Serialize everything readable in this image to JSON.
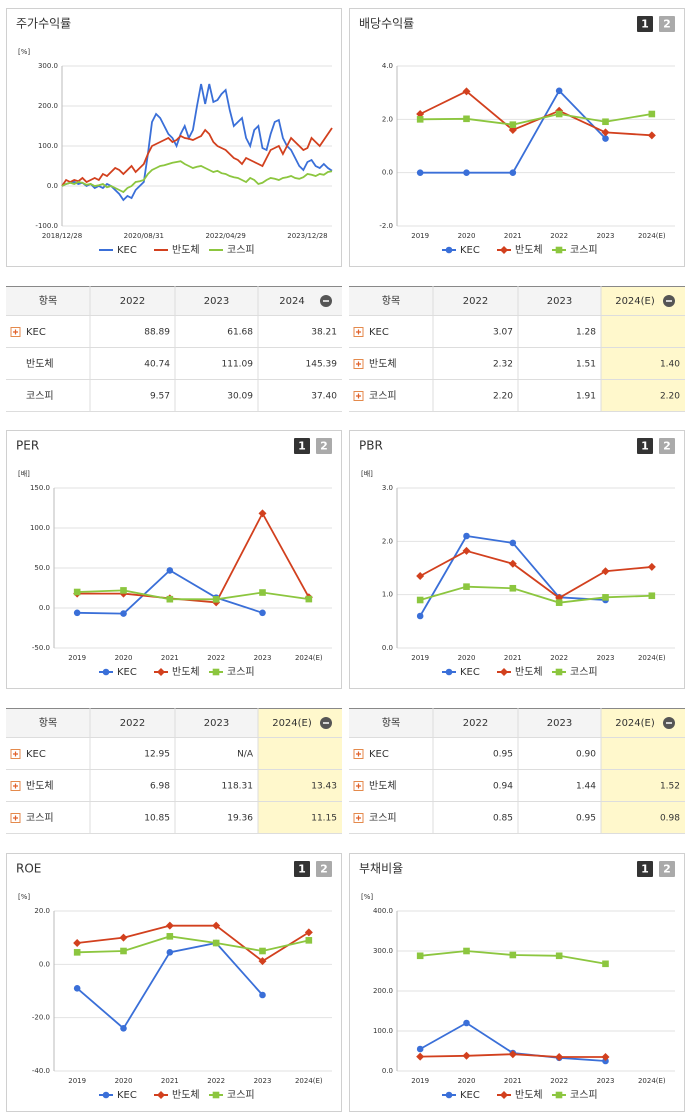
{
  "chart_data": [
    {
      "type": "line",
      "title": "주가수익률",
      "unit": "[%]",
      "categories": [
        "2018/12/28",
        null,
        null,
        null,
        null,
        null,
        null,
        null,
        null,
        null,
        null,
        null,
        null,
        null,
        null,
        null,
        null,
        null,
        null,
        null,
        "2020/08/31",
        null,
        null,
        null,
        null,
        null,
        null,
        null,
        null,
        null,
        null,
        null,
        null,
        null,
        null,
        null,
        null,
        null,
        null,
        null,
        "2022/04/29",
        null,
        null,
        null,
        null,
        null,
        null,
        null,
        null,
        null,
        null,
        null,
        null,
        null,
        null,
        null,
        null,
        null,
        null,
        null,
        "2023/12/28",
        null,
        null,
        null,
        null,
        null,
        null
      ],
      "series": [
        {
          "name": "KEC",
          "color": "#3a6fd8",
          "values": [
            0,
            5,
            8,
            10,
            5,
            8,
            0,
            5,
            -5,
            0,
            -5,
            5,
            0,
            -10,
            -20,
            -35,
            -25,
            -30,
            -10,
            0,
            10,
            80,
            160,
            180,
            170,
            150,
            130,
            120,
            100,
            130,
            150,
            120,
            140,
            200,
            255,
            205,
            255,
            210,
            215,
            230,
            240,
            190,
            150,
            160,
            170,
            120,
            100,
            140,
            150,
            95,
            90,
            130,
            160,
            165,
            120,
            100,
            90,
            70,
            50,
            40,
            60,
            65,
            50,
            45,
            55,
            45,
            38
          ]
        },
        {
          "name": "반도체",
          "color": "#d2401e",
          "values": [
            0,
            15,
            10,
            15,
            12,
            20,
            10,
            15,
            20,
            15,
            30,
            25,
            35,
            45,
            40,
            30,
            40,
            50,
            35,
            45,
            55,
            80,
            100,
            105,
            110,
            115,
            120,
            110,
            115,
            125,
            120,
            118,
            115,
            120,
            125,
            140,
            130,
            110,
            100,
            95,
            90,
            80,
            70,
            65,
            55,
            70,
            65,
            60,
            55,
            50,
            70,
            90,
            95,
            100,
            80,
            100,
            120,
            110,
            100,
            90,
            95,
            120,
            110,
            100,
            115,
            130,
            145
          ]
        },
        {
          "name": "코스피",
          "color": "#8cc63f",
          "values": [
            0,
            5,
            8,
            5,
            10,
            8,
            3,
            5,
            0,
            2,
            5,
            -3,
            0,
            -5,
            -10,
            -15,
            -5,
            0,
            10,
            12,
            15,
            30,
            40,
            45,
            50,
            52,
            55,
            58,
            60,
            62,
            55,
            50,
            45,
            48,
            50,
            45,
            40,
            35,
            38,
            32,
            30,
            25,
            22,
            20,
            15,
            10,
            20,
            15,
            5,
            8,
            15,
            20,
            18,
            15,
            20,
            22,
            25,
            20,
            18,
            22,
            30,
            28,
            25,
            30,
            28,
            35,
            37
          ]
        }
      ],
      "ylim": [
        -100,
        300
      ],
      "yticks": [
        {
          "value": -100,
          "label": "-100.0"
        },
        {
          "value": 0,
          "label": "0.0"
        },
        {
          "value": 100,
          "label": "100.0"
        },
        {
          "value": 200,
          "label": "200.0"
        },
        {
          "value": 300,
          "label": "300.0"
        }
      ],
      "grid": true
    },
    {
      "type": "line",
      "title": "배당수익률",
      "buttons": [
        "1",
        "2"
      ],
      "categories": [
        "2019",
        "2020",
        "2021",
        "2022",
        "2023",
        "2024(E)"
      ],
      "series": [
        {
          "name": "KEC",
          "color": "#3a6fd8",
          "marker": "circle",
          "values": [
            0,
            0,
            0,
            3.07,
            1.28,
            null
          ]
        },
        {
          "name": "반도체",
          "color": "#d2401e",
          "marker": "diamond",
          "values": [
            2.2,
            3.05,
            1.6,
            2.32,
            1.51,
            1.4
          ]
        },
        {
          "name": "코스피",
          "color": "#8cc63f",
          "marker": "square",
          "values": [
            2.0,
            2.02,
            1.8,
            2.2,
            1.91,
            2.2
          ]
        }
      ],
      "ylim": [
        -2,
        4
      ],
      "yticks": [
        {
          "value": -2,
          "label": "-2.0"
        },
        {
          "value": 0,
          "label": "0.0"
        },
        {
          "value": 2,
          "label": "2.0"
        },
        {
          "value": 4,
          "label": "4.0"
        }
      ],
      "grid": true
    },
    {
      "type": "line",
      "title": "PER",
      "unit": "[배]",
      "buttons": [
        "1",
        "2"
      ],
      "categories": [
        "2019",
        "2020",
        "2021",
        "2022",
        "2023",
        "2024(E)"
      ],
      "series": [
        {
          "name": "KEC",
          "color": "#3a6fd8",
          "marker": "circle",
          "values": [
            -6,
            -7,
            47,
            12.95,
            -6,
            null
          ]
        },
        {
          "name": "반도체",
          "color": "#d2401e",
          "marker": "diamond",
          "values": [
            18,
            18,
            12,
            6.98,
            118.31,
            13.43
          ]
        },
        {
          "name": "코스피",
          "color": "#8cc63f",
          "marker": "square",
          "values": [
            20,
            22,
            11,
            10.85,
            19.36,
            11.15
          ]
        }
      ],
      "ylim": [
        -50,
        150
      ],
      "yticks": [
        {
          "value": -50,
          "label": "-50.0"
        },
        {
          "value": 0,
          "label": "0.0"
        },
        {
          "value": 50,
          "label": "50.0"
        },
        {
          "value": 100,
          "label": "100.0"
        },
        {
          "value": 150,
          "label": "150.0"
        }
      ],
      "grid": true
    },
    {
      "type": "line",
      "title": "PBR",
      "unit": "[배]",
      "buttons": [
        "1",
        "2"
      ],
      "categories": [
        "2019",
        "2020",
        "2021",
        "2022",
        "2023",
        "2024(E)"
      ],
      "series": [
        {
          "name": "KEC",
          "color": "#3a6fd8",
          "marker": "circle",
          "values": [
            0.6,
            2.1,
            1.97,
            0.95,
            0.9,
            null
          ]
        },
        {
          "name": "반도체",
          "color": "#d2401e",
          "marker": "diamond",
          "values": [
            1.35,
            1.82,
            1.58,
            0.94,
            1.44,
            1.52
          ]
        },
        {
          "name": "코스피",
          "color": "#8cc63f",
          "marker": "square",
          "values": [
            0.9,
            1.15,
            1.12,
            0.85,
            0.95,
            0.98
          ]
        }
      ],
      "ylim": [
        0,
        3
      ],
      "yticks": [
        {
          "value": 0,
          "label": "0.0"
        },
        {
          "value": 1,
          "label": "1.0"
        },
        {
          "value": 2,
          "label": "2.0"
        },
        {
          "value": 3,
          "label": "3.0"
        }
      ],
      "grid": true
    },
    {
      "type": "line",
      "title": "ROE",
      "unit": "[%]",
      "buttons": [
        "1",
        "2"
      ],
      "categories": [
        "2019",
        "2020",
        "2021",
        "2022",
        "2023",
        "2024(E)"
      ],
      "series": [
        {
          "name": "KEC",
          "color": "#3a6fd8",
          "marker": "circle",
          "values": [
            -9,
            -24,
            4.5,
            8,
            -11.5,
            null
          ]
        },
        {
          "name": "반도체",
          "color": "#d2401e",
          "marker": "diamond",
          "values": [
            8,
            10,
            14.5,
            14.5,
            1.2,
            12
          ]
        },
        {
          "name": "코스피",
          "color": "#8cc63f",
          "marker": "square",
          "values": [
            4.5,
            5,
            10.5,
            8,
            5,
            9
          ]
        }
      ],
      "ylim": [
        -40,
        20
      ],
      "yticks": [
        {
          "value": -40,
          "label": "-40.0"
        },
        {
          "value": -20,
          "label": "-20.0"
        },
        {
          "value": 0,
          "label": "0.0"
        },
        {
          "value": 20,
          "label": "20.0"
        }
      ],
      "grid": true
    },
    {
      "type": "line",
      "title": "부채비율",
      "unit": "[%]",
      "buttons": [
        "1",
        "2"
      ],
      "categories": [
        "2019",
        "2020",
        "2021",
        "2022",
        "2023",
        "2024(E)"
      ],
      "series": [
        {
          "name": "KEC",
          "color": "#3a6fd8",
          "marker": "circle",
          "values": [
            55,
            120,
            45,
            33,
            25,
            null
          ]
        },
        {
          "name": "반도체",
          "color": "#d2401e",
          "marker": "diamond",
          "values": [
            36,
            38,
            42,
            35,
            35,
            null
          ]
        },
        {
          "name": "코스피",
          "color": "#8cc63f",
          "marker": "square",
          "values": [
            288,
            300,
            290,
            288,
            268,
            null
          ]
        }
      ],
      "ylim": [
        0,
        400
      ],
      "yticks": [
        {
          "value": 0,
          "label": "0.0"
        },
        {
          "value": 100,
          "label": "100.0"
        },
        {
          "value": 200,
          "label": "200.0"
        },
        {
          "value": 300,
          "label": "300.0"
        },
        {
          "value": 400,
          "label": "400.0"
        }
      ],
      "grid": true
    }
  ],
  "tables": [
    {
      "header": [
        "항목",
        "2022",
        "2023",
        "2024"
      ],
      "highlight_last": false,
      "rows": [
        {
          "expandable": true,
          "cells": [
            "KEC",
            "88.89",
            "61.68",
            "38.21"
          ]
        },
        {
          "expandable": false,
          "cells": [
            "반도체",
            "40.74",
            "111.09",
            "145.39"
          ]
        },
        {
          "expandable": false,
          "cells": [
            "코스피",
            "9.57",
            "30.09",
            "37.40"
          ]
        }
      ]
    },
    {
      "header": [
        "항목",
        "2022",
        "2023",
        "2024(E)"
      ],
      "highlight_last": true,
      "rows": [
        {
          "expandable": true,
          "cells": [
            "KEC",
            "3.07",
            "1.28",
            null
          ]
        },
        {
          "expandable": true,
          "cells": [
            "반도체",
            "2.32",
            "1.51",
            "1.40"
          ]
        },
        {
          "expandable": true,
          "cells": [
            "코스피",
            "2.20",
            "1.91",
            "2.20"
          ]
        }
      ]
    },
    {
      "header": [
        "항목",
        "2022",
        "2023",
        "2024(E)"
      ],
      "highlight_last": true,
      "rows": [
        {
          "expandable": true,
          "cells": [
            "KEC",
            "12.95",
            "N/A",
            null
          ]
        },
        {
          "expandable": true,
          "cells": [
            "반도체",
            "6.98",
            "118.31",
            "13.43"
          ]
        },
        {
          "expandable": true,
          "cells": [
            "코스피",
            "10.85",
            "19.36",
            "11.15"
          ]
        }
      ]
    },
    {
      "header": [
        "항목",
        "2022",
        "2023",
        "2024(E)"
      ],
      "highlight_last": true,
      "rows": [
        {
          "expandable": true,
          "cells": [
            "KEC",
            "0.95",
            "0.90",
            null
          ]
        },
        {
          "expandable": true,
          "cells": [
            "반도체",
            "0.94",
            "1.44",
            "1.52"
          ]
        },
        {
          "expandable": true,
          "cells": [
            "코스피",
            "0.85",
            "0.95",
            "0.98"
          ]
        }
      ]
    }
  ]
}
